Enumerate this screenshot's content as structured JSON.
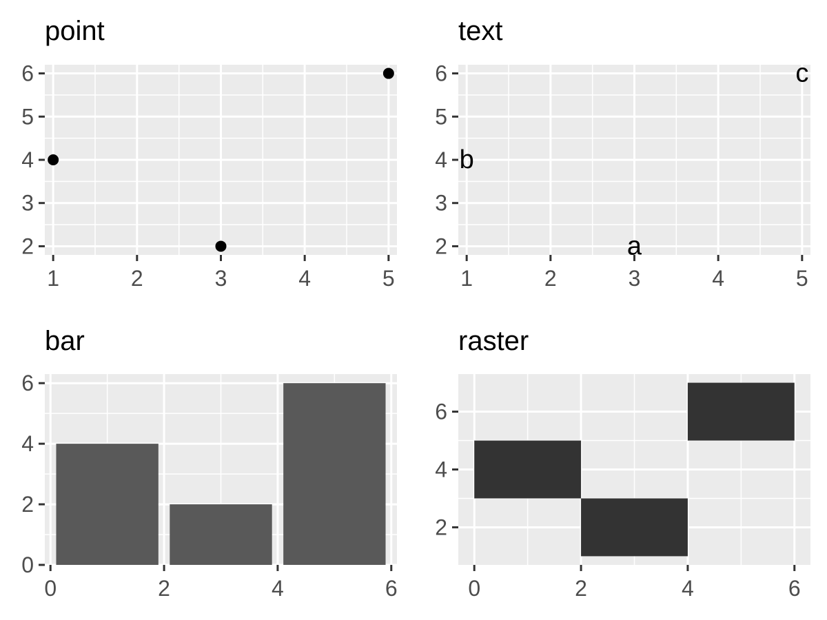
{
  "chart_data": [
    {
      "title": "point",
      "type": "scatter",
      "x": [
        3,
        1,
        5
      ],
      "y": [
        2,
        4,
        6
      ],
      "xlim": [
        0.9,
        5.1
      ],
      "ylim": [
        1.8,
        6.2
      ],
      "x_ticks": [
        1,
        2,
        3,
        4,
        5
      ],
      "y_ticks": [
        2,
        3,
        4,
        5,
        6
      ],
      "grid": true,
      "point_color": "#000000"
    },
    {
      "title": "text",
      "type": "text",
      "x": [
        3,
        1,
        5
      ],
      "y": [
        2,
        4,
        6
      ],
      "labels": [
        "a",
        "b",
        "c"
      ],
      "xlim": [
        0.9,
        5.1
      ],
      "ylim": [
        1.8,
        6.2
      ],
      "x_ticks": [
        1,
        2,
        3,
        4,
        5
      ],
      "y_ticks": [
        2,
        3,
        4,
        5,
        6
      ],
      "grid": true,
      "text_color": "#000000"
    },
    {
      "title": "bar",
      "type": "bar",
      "x": [
        1,
        3,
        5
      ],
      "values": [
        4,
        2,
        6
      ],
      "bar_width": 1.8,
      "xlim": [
        -0.1,
        6.1
      ],
      "ylim": [
        0,
        6.3
      ],
      "x_ticks": [
        0,
        2,
        4,
        6
      ],
      "y_ticks": [
        0,
        2,
        4,
        6
      ],
      "grid": true,
      "bar_color": "#595959"
    },
    {
      "title": "raster",
      "type": "heatmap",
      "x": [
        1,
        3,
        5
      ],
      "y": [
        4,
        2,
        6
      ],
      "tile_width": 2,
      "tile_height": 2,
      "xlim": [
        -0.3,
        6.3
      ],
      "ylim": [
        0.7,
        7.3
      ],
      "x_ticks": [
        0,
        2,
        4,
        6
      ],
      "y_ticks": [
        2,
        4,
        6
      ],
      "grid": true,
      "tile_color": "#333333"
    }
  ],
  "theme": {
    "panel_background": "#ebebeb",
    "grid_color": "#ffffff",
    "tick_color": "#333333",
    "tick_label_color": "#4d4d4d",
    "title_color": "#000000"
  }
}
